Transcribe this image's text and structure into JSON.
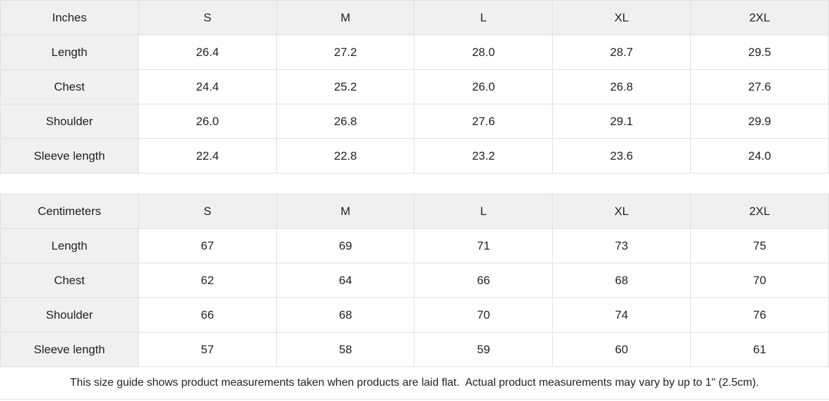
{
  "footnote": "This size guide shows product measurements taken when products are laid flat.  Actual product measurements may vary by up to 1\" (2.5cm).",
  "colors": {
    "header_bg": "#f0f0f0",
    "cell_bg": "#ffffff",
    "border": "#e0e0e0",
    "text": "#1f1f1f"
  },
  "tables": [
    {
      "unit_label": "Inches",
      "sizes": [
        "S",
        "M",
        "L",
        "XL",
        "2XL"
      ],
      "rows": [
        {
          "label": "Length",
          "values": [
            "26.4",
            "27.2",
            "28.0",
            "28.7",
            "29.5"
          ]
        },
        {
          "label": "Chest",
          "values": [
            "24.4",
            "25.2",
            "26.0",
            "26.8",
            "27.6"
          ]
        },
        {
          "label": "Shoulder",
          "values": [
            "26.0",
            "26.8",
            "27.6",
            "29.1",
            "29.9"
          ]
        },
        {
          "label": "Sleeve length",
          "values": [
            "22.4",
            "22.8",
            "23.2",
            "23.6",
            "24.0"
          ]
        }
      ]
    },
    {
      "unit_label": "Centimeters",
      "sizes": [
        "S",
        "M",
        "L",
        "XL",
        "2XL"
      ],
      "rows": [
        {
          "label": "Length",
          "values": [
            "67",
            "69",
            "71",
            "73",
            "75"
          ]
        },
        {
          "label": "Chest",
          "values": [
            "62",
            "64",
            "66",
            "68",
            "70"
          ]
        },
        {
          "label": "Shoulder",
          "values": [
            "66",
            "68",
            "70",
            "74",
            "76"
          ]
        },
        {
          "label": "Sleeve length",
          "values": [
            "57",
            "58",
            "59",
            "60",
            "61"
          ]
        }
      ]
    }
  ],
  "chart_data": [
    {
      "type": "table",
      "title": "Inches",
      "columns": [
        "Inches",
        "S",
        "M",
        "L",
        "XL",
        "2XL"
      ],
      "rows": [
        [
          "Length",
          26.4,
          27.2,
          28.0,
          28.7,
          29.5
        ],
        [
          "Chest",
          24.4,
          25.2,
          26.0,
          26.8,
          27.6
        ],
        [
          "Shoulder",
          26.0,
          26.8,
          27.6,
          29.1,
          29.9
        ],
        [
          "Sleeve length",
          22.4,
          22.8,
          23.2,
          23.6,
          24.0
        ]
      ]
    },
    {
      "type": "table",
      "title": "Centimeters",
      "columns": [
        "Centimeters",
        "S",
        "M",
        "L",
        "XL",
        "2XL"
      ],
      "rows": [
        [
          "Length",
          67,
          69,
          71,
          73,
          75
        ],
        [
          "Chest",
          62,
          64,
          66,
          68,
          70
        ],
        [
          "Shoulder",
          66,
          68,
          70,
          74,
          76
        ],
        [
          "Sleeve length",
          57,
          58,
          59,
          60,
          61
        ]
      ]
    }
  ]
}
